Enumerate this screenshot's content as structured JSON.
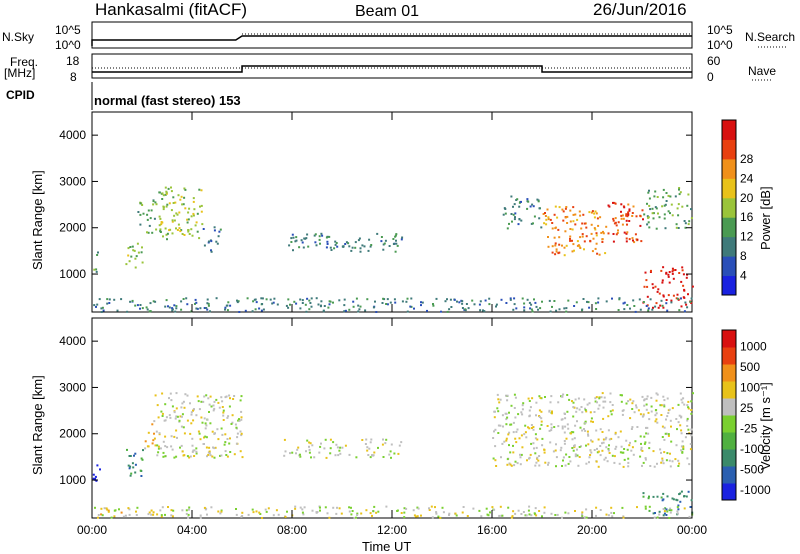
{
  "header": {
    "station": "Hankasalmi (fitACF)",
    "beam": "Beam 01",
    "date": "26/Jun/2016"
  },
  "strips": {
    "nsky_label": "N.Sky",
    "nsky_tick_top": "10^5",
    "nsky_tick_bottom": "10^0",
    "nsearch_label": "N.Search",
    "nsearch_tick_top": "10^5",
    "nsearch_tick_bottom": "10^0",
    "freq_label_1": "Freq.",
    "freq_label_2": "[MHz]",
    "freq_tick_top": "18",
    "freq_tick_bottom": "8",
    "nave_label": "Nave",
    "nave_tick_top": "60",
    "nave_tick_bottom": "0",
    "cpid_label": "CPID",
    "cpid_text": "normal (fast stereo) 153"
  },
  "chart_data": [
    {
      "type": "heatmap",
      "name": "power",
      "ylabel": "Slant Range [km]",
      "xlabel": "",
      "ylim": [
        180,
        4500
      ],
      "yticks": [
        "1000",
        "2000",
        "3000",
        "4000"
      ],
      "colorbar": {
        "label": "Power [dB]",
        "ticks": [
          "4",
          "8",
          "12",
          "16",
          "20",
          "24",
          "28"
        ],
        "colors": [
          "#1a22e0",
          "#2a4fb8",
          "#3f7a7a",
          "#4a9a52",
          "#9ac43a",
          "#e8c21a",
          "#f0901a",
          "#e84010",
          "#d81010"
        ]
      },
      "regions": [
        {
          "t0": 0.0,
          "t1": 0.3,
          "r0": 1000,
          "r1": 1500,
          "level": 3
        },
        {
          "t0": 1.3,
          "t1": 2.0,
          "r0": 1100,
          "r1": 1700,
          "level": 4
        },
        {
          "t0": 1.8,
          "t1": 2.5,
          "r0": 1900,
          "r1": 2700,
          "level": 3
        },
        {
          "t0": 2.5,
          "t1": 4.4,
          "r0": 1700,
          "r1": 2900,
          "level": 4
        },
        {
          "t0": 4.4,
          "t1": 5.2,
          "r0": 1500,
          "r1": 2100,
          "level": 2
        },
        {
          "t0": 7.6,
          "t1": 12.4,
          "r0": 1500,
          "r1": 1900,
          "level": 2
        },
        {
          "t0": 16.4,
          "t1": 18.0,
          "r0": 2000,
          "r1": 2700,
          "level": 2
        },
        {
          "t0": 18.0,
          "t1": 20.5,
          "r0": 1400,
          "r1": 2500,
          "level": 6
        },
        {
          "t0": 20.5,
          "t1": 22.0,
          "r0": 1700,
          "r1": 2600,
          "level": 7
        },
        {
          "t0": 22.0,
          "t1": 24.0,
          "r0": 2000,
          "r1": 2900,
          "level": 3
        },
        {
          "t0": 22.0,
          "t1": 24.0,
          "r0": 250,
          "r1": 1200,
          "level": 8
        },
        {
          "t0": 0.0,
          "t1": 24.0,
          "r0": 200,
          "r1": 500,
          "level": 2
        }
      ]
    },
    {
      "type": "heatmap",
      "name": "velocity",
      "ylabel": "Slant Range [km]",
      "xlabel": "Time UT",
      "ylim": [
        180,
        4500
      ],
      "yticks": [
        "1000",
        "2000",
        "3000",
        "4000"
      ],
      "xticks": [
        "00:00",
        "04:00",
        "08:00",
        "12:00",
        "16:00",
        "20:00",
        "00:00"
      ],
      "colorbar": {
        "label": "Velocity [m s⁻¹]",
        "ticks": [
          "1000",
          "500",
          "100",
          "25",
          "-25",
          "-100",
          "-500",
          "-1000"
        ],
        "colors": [
          "#1a22e0",
          "#2a5fb0",
          "#3a8a6a",
          "#50b040",
          "#7ad030",
          "#bfbfbf",
          "#e8c21a",
          "#f0901a",
          "#e84010",
          "#d81010"
        ]
      },
      "regions": [
        {
          "t0": 0.0,
          "t1": 0.3,
          "r0": 1000,
          "r1": 1500,
          "level": 0
        },
        {
          "t0": 0.0,
          "t1": 1.2,
          "r0": 250,
          "r1": 400,
          "level": 6
        },
        {
          "t0": 1.3,
          "t1": 2.0,
          "r0": 1100,
          "r1": 1700,
          "level": 2
        },
        {
          "t0": 2.0,
          "t1": 2.5,
          "r0": 1700,
          "r1": 2300,
          "level": 6
        },
        {
          "t0": 2.5,
          "t1": 6.0,
          "r0": 1500,
          "r1": 2900,
          "level": 5
        },
        {
          "t0": 7.6,
          "t1": 12.4,
          "r0": 1500,
          "r1": 1900,
          "level": 5
        },
        {
          "t0": 16.0,
          "t1": 24.0,
          "r0": 1300,
          "r1": 2900,
          "level": 5
        },
        {
          "t0": 22.0,
          "t1": 24.0,
          "r0": 250,
          "r1": 800,
          "level": 2
        },
        {
          "t0": 0.0,
          "t1": 24.0,
          "r0": 200,
          "r1": 450,
          "level": 5
        }
      ]
    }
  ]
}
